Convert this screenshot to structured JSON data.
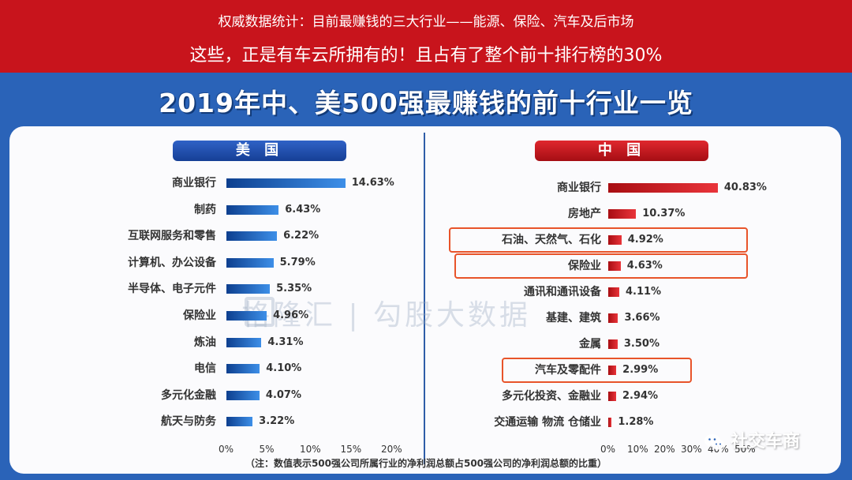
{
  "banner": {
    "line1": "权威数据统计：目前最赚钱的三大行业——能源、保险、汽车及后市场",
    "line2": "这些，正是有车云所拥有的！且占有了整个前十排行榜的30%"
  },
  "title": "2019年中、美500强最赚钱的前十行业一览",
  "footnote": "（注：数值表示500强公司所属行业的净利润总额占500强公司的净利润总额的比重）",
  "watermark": {
    "text": "格隆汇 | 勾股大数据"
  },
  "wechat": {
    "account": "社交车商",
    "icon": "wechat-icon"
  },
  "colors": {
    "us_bar": "#1f5fbf",
    "cn_bar": "#d4242a",
    "banner": "#c8141c",
    "highlight": "#e8542a"
  },
  "chart_data": [
    {
      "type": "bar",
      "orientation": "horizontal",
      "title": "美 国",
      "categories": [
        "商业银行",
        "制药",
        "互联网服务和零售",
        "计算机、办公设备",
        "半导体、电子元件",
        "保险业",
        "炼油",
        "电信",
        "多元化金融",
        "航天与防务"
      ],
      "values": [
        14.63,
        6.43,
        6.22,
        5.79,
        5.35,
        4.96,
        4.31,
        4.1,
        4.07,
        3.22
      ],
      "value_labels": [
        "14.63%",
        "6.43%",
        "6.22%",
        "5.79%",
        "5.35%",
        "4.96%",
        "4.31%",
        "4.10%",
        "4.07%",
        "3.22%"
      ],
      "xlim": [
        0,
        20
      ],
      "ticks": [
        "0%",
        "5%",
        "10%",
        "15%",
        "20%"
      ],
      "grid": false
    },
    {
      "type": "bar",
      "orientation": "horizontal",
      "title": "中 国",
      "categories": [
        "商业银行",
        "房地产",
        "石油、天然气、石化",
        "保险业",
        "通讯和通讯设备",
        "基建、建筑",
        "金属",
        "汽车及零配件",
        "多元化投资、金融业",
        "交通运输 物流 仓储业"
      ],
      "values": [
        40.83,
        10.37,
        4.92,
        4.63,
        4.11,
        3.66,
        3.5,
        2.99,
        2.94,
        1.28
      ],
      "value_labels": [
        "40.83%",
        "10.37%",
        "4.92%",
        "4.63%",
        "4.11%",
        "3.66%",
        "3.50%",
        "2.99%",
        "2.94%",
        "1.28%"
      ],
      "xlim": [
        0,
        50
      ],
      "ticks": [
        "0%",
        "10%",
        "20%",
        "30%",
        "40%",
        "50%"
      ],
      "highlighted": [
        "石油、天然气、石化",
        "保险业",
        "汽车及零配件"
      ],
      "grid": false
    }
  ]
}
